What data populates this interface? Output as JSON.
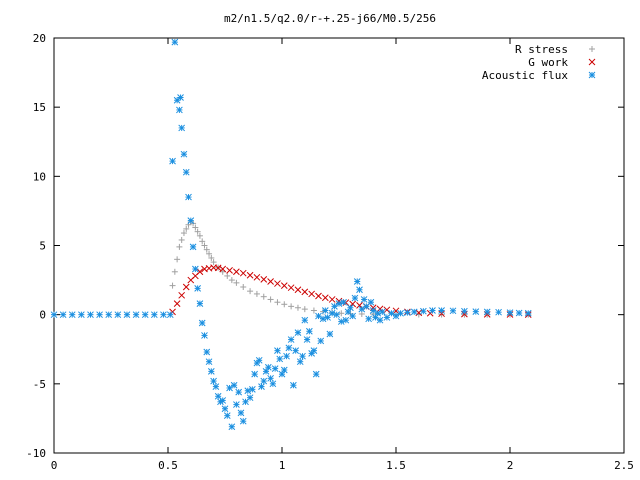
{
  "chart_data": {
    "type": "scatter",
    "title": "m2/n1.5/q2.0/r-+.25-j66/M0.5/256",
    "xlabel": "",
    "ylabel": "",
    "xlim": [
      0,
      2.5
    ],
    "ylim": [
      -10,
      20
    ],
    "x_ticks": [
      "0",
      "0.5",
      "1",
      "1.5",
      "2",
      "2.5"
    ],
    "y_ticks": [
      "-10",
      "-5",
      "0",
      "5",
      "10",
      "15",
      "20"
    ],
    "grid": false,
    "legend_position": "top-right",
    "series": [
      {
        "name": "R stress",
        "marker": "plus",
        "color": "#a0a0a0",
        "points": [
          [
            0.52,
            2.1
          ],
          [
            0.53,
            3.1
          ],
          [
            0.54,
            4.0
          ],
          [
            0.55,
            4.9
          ],
          [
            0.56,
            5.4
          ],
          [
            0.57,
            5.9
          ],
          [
            0.58,
            6.2
          ],
          [
            0.59,
            6.5
          ],
          [
            0.6,
            6.7
          ],
          [
            0.61,
            6.6
          ],
          [
            0.62,
            6.3
          ],
          [
            0.63,
            6.0
          ],
          [
            0.64,
            5.7
          ],
          [
            0.65,
            5.3
          ],
          [
            0.66,
            5.0
          ],
          [
            0.67,
            4.7
          ],
          [
            0.68,
            4.4
          ],
          [
            0.69,
            4.1
          ],
          [
            0.7,
            3.8
          ],
          [
            0.72,
            3.4
          ],
          [
            0.74,
            3.1
          ],
          [
            0.76,
            2.8
          ],
          [
            0.78,
            2.5
          ],
          [
            0.8,
            2.3
          ],
          [
            0.83,
            2.0
          ],
          [
            0.86,
            1.7
          ],
          [
            0.89,
            1.5
          ],
          [
            0.92,
            1.3
          ],
          [
            0.95,
            1.1
          ],
          [
            0.98,
            0.9
          ],
          [
            1.01,
            0.75
          ],
          [
            1.04,
            0.6
          ],
          [
            1.07,
            0.5
          ],
          [
            1.1,
            0.4
          ],
          [
            1.14,
            0.3
          ],
          [
            1.18,
            0.22
          ],
          [
            1.22,
            0.15
          ],
          [
            1.26,
            0.1
          ],
          [
            1.3,
            0.07
          ],
          [
            1.35,
            0.05
          ],
          [
            1.4,
            0.04
          ],
          [
            1.5,
            0.02
          ],
          [
            1.6,
            0.01
          ],
          [
            1.7,
            0.01
          ],
          [
            1.8,
            0.0
          ],
          [
            1.9,
            0.0
          ],
          [
            2.0,
            0.0
          ],
          [
            2.08,
            0.0
          ]
        ]
      },
      {
        "name": "G work",
        "marker": "cross",
        "color": "#cc0000",
        "points": [
          [
            0.52,
            0.2
          ],
          [
            0.54,
            0.8
          ],
          [
            0.56,
            1.4
          ],
          [
            0.58,
            2.0
          ],
          [
            0.6,
            2.5
          ],
          [
            0.62,
            2.8
          ],
          [
            0.64,
            3.1
          ],
          [
            0.66,
            3.3
          ],
          [
            0.68,
            3.35
          ],
          [
            0.7,
            3.4
          ],
          [
            0.72,
            3.38
          ],
          [
            0.74,
            3.3
          ],
          [
            0.77,
            3.2
          ],
          [
            0.8,
            3.1
          ],
          [
            0.83,
            3.0
          ],
          [
            0.86,
            2.85
          ],
          [
            0.89,
            2.7
          ],
          [
            0.92,
            2.55
          ],
          [
            0.95,
            2.4
          ],
          [
            0.98,
            2.25
          ],
          [
            1.01,
            2.1
          ],
          [
            1.04,
            1.95
          ],
          [
            1.07,
            1.8
          ],
          [
            1.1,
            1.65
          ],
          [
            1.13,
            1.5
          ],
          [
            1.16,
            1.35
          ],
          [
            1.19,
            1.22
          ],
          [
            1.22,
            1.1
          ],
          [
            1.25,
            0.98
          ],
          [
            1.28,
            0.87
          ],
          [
            1.31,
            0.77
          ],
          [
            1.34,
            0.67
          ],
          [
            1.37,
            0.58
          ],
          [
            1.4,
            0.5
          ],
          [
            1.43,
            0.42
          ],
          [
            1.46,
            0.35
          ],
          [
            1.5,
            0.28
          ],
          [
            1.55,
            0.2
          ],
          [
            1.6,
            0.14
          ],
          [
            1.65,
            0.1
          ],
          [
            1.7,
            0.07
          ],
          [
            1.8,
            0.04
          ],
          [
            1.9,
            0.02
          ],
          [
            2.0,
            0.01
          ],
          [
            2.08,
            0.0
          ]
        ]
      },
      {
        "name": "Acoustic flux",
        "marker": "star",
        "color": "#1a8fe0",
        "points": [
          [
            0.0,
            0
          ],
          [
            0.04,
            0
          ],
          [
            0.08,
            0
          ],
          [
            0.12,
            0
          ],
          [
            0.16,
            0
          ],
          [
            0.2,
            0
          ],
          [
            0.24,
            0
          ],
          [
            0.28,
            0
          ],
          [
            0.32,
            0
          ],
          [
            0.36,
            0
          ],
          [
            0.4,
            0
          ],
          [
            0.44,
            0
          ],
          [
            0.48,
            0
          ],
          [
            0.51,
            0
          ],
          [
            0.52,
            11.1
          ],
          [
            0.53,
            19.7
          ],
          [
            0.54,
            15.5
          ],
          [
            0.55,
            14.8
          ],
          [
            0.555,
            15.7
          ],
          [
            0.56,
            13.5
          ],
          [
            0.57,
            11.6
          ],
          [
            0.58,
            10.3
          ],
          [
            0.59,
            8.5
          ],
          [
            0.6,
            6.8
          ],
          [
            0.61,
            4.9
          ],
          [
            0.62,
            3.3
          ],
          [
            0.63,
            1.9
          ],
          [
            0.64,
            0.8
          ],
          [
            0.65,
            -0.6
          ],
          [
            0.66,
            -1.5
          ],
          [
            0.67,
            -2.7
          ],
          [
            0.68,
            -3.4
          ],
          [
            0.69,
            -4.1
          ],
          [
            0.7,
            -4.8
          ],
          [
            0.71,
            -5.2
          ],
          [
            0.72,
            -5.9
          ],
          [
            0.73,
            -6.3
          ],
          [
            0.74,
            -6.2
          ],
          [
            0.75,
            -6.8
          ],
          [
            0.76,
            -7.3
          ],
          [
            0.77,
            -5.3
          ],
          [
            0.78,
            -8.1
          ],
          [
            0.79,
            -5.1
          ],
          [
            0.8,
            -6.5
          ],
          [
            0.81,
            -5.6
          ],
          [
            0.82,
            -7.1
          ],
          [
            0.83,
            -7.7
          ],
          [
            0.84,
            -6.3
          ],
          [
            0.85,
            -5.5
          ],
          [
            0.86,
            -6.0
          ],
          [
            0.87,
            -5.4
          ],
          [
            0.88,
            -4.3
          ],
          [
            0.89,
            -3.5
          ],
          [
            0.9,
            -3.3
          ],
          [
            0.91,
            -5.2
          ],
          [
            0.92,
            -4.8
          ],
          [
            0.93,
            -4.1
          ],
          [
            0.94,
            -3.8
          ],
          [
            0.95,
            -4.6
          ],
          [
            0.96,
            -5.0
          ],
          [
            0.97,
            -3.9
          ],
          [
            0.98,
            -2.6
          ],
          [
            0.99,
            -3.2
          ],
          [
            1.0,
            -4.3
          ],
          [
            1.01,
            -4.0
          ],
          [
            1.02,
            -3.0
          ],
          [
            1.03,
            -2.4
          ],
          [
            1.04,
            -1.8
          ],
          [
            1.05,
            -5.1
          ],
          [
            1.06,
            -2.6
          ],
          [
            1.07,
            -1.3
          ],
          [
            1.08,
            -3.4
          ],
          [
            1.09,
            -3.0
          ],
          [
            1.1,
            -0.4
          ],
          [
            1.11,
            -1.8
          ],
          [
            1.12,
            -1.2
          ],
          [
            1.13,
            -2.8
          ],
          [
            1.14,
            -2.6
          ],
          [
            1.15,
            -4.3
          ],
          [
            1.16,
            -0.1
          ],
          [
            1.17,
            -1.9
          ],
          [
            1.18,
            -0.3
          ],
          [
            1.19,
            0.3
          ],
          [
            1.2,
            -0.2
          ],
          [
            1.21,
            -1.4
          ],
          [
            1.22,
            0.1
          ],
          [
            1.23,
            0.6
          ],
          [
            1.24,
            0.0
          ],
          [
            1.25,
            0.8
          ],
          [
            1.26,
            -0.5
          ],
          [
            1.27,
            0.9
          ],
          [
            1.28,
            -0.4
          ],
          [
            1.29,
            0.2
          ],
          [
            1.3,
            0.5
          ],
          [
            1.31,
            -0.1
          ],
          [
            1.32,
            1.2
          ],
          [
            1.33,
            2.4
          ],
          [
            1.34,
            1.8
          ],
          [
            1.35,
            0.4
          ],
          [
            1.36,
            1.1
          ],
          [
            1.37,
            0.6
          ],
          [
            1.38,
            -0.3
          ],
          [
            1.39,
            0.9
          ],
          [
            1.4,
            0.3
          ],
          [
            1.41,
            -0.2
          ],
          [
            1.42,
            0.1
          ],
          [
            1.43,
            -0.4
          ],
          [
            1.44,
            0.2
          ],
          [
            1.46,
            -0.2
          ],
          [
            1.48,
            0.1
          ],
          [
            1.5,
            -0.1
          ],
          [
            1.52,
            0.1
          ],
          [
            1.55,
            0.15
          ],
          [
            1.58,
            0.2
          ],
          [
            1.62,
            0.25
          ],
          [
            1.66,
            0.3
          ],
          [
            1.7,
            0.3
          ],
          [
            1.75,
            0.28
          ],
          [
            1.8,
            0.25
          ],
          [
            1.85,
            0.22
          ],
          [
            1.9,
            0.2
          ],
          [
            1.95,
            0.18
          ],
          [
            2.0,
            0.15
          ],
          [
            2.04,
            0.12
          ],
          [
            2.08,
            0.1
          ]
        ]
      }
    ]
  }
}
